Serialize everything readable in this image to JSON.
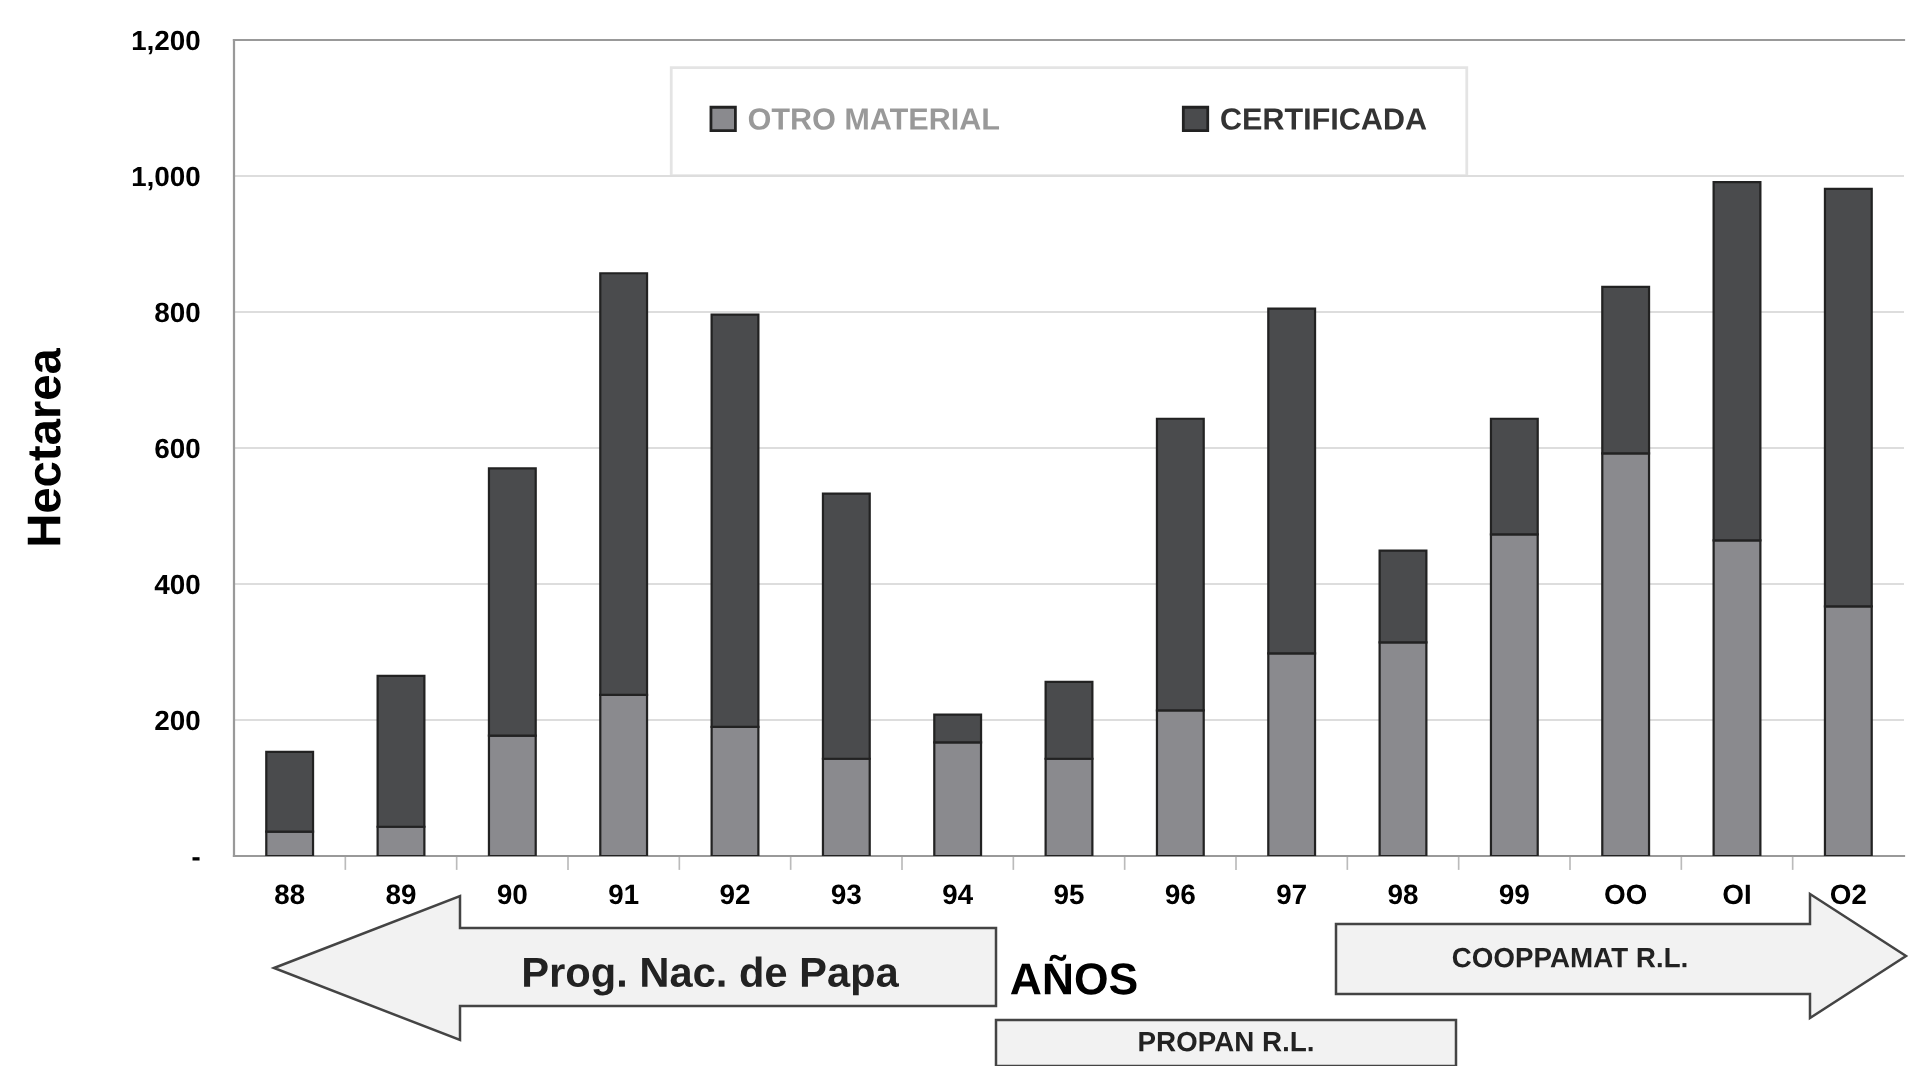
{
  "chart_data": {
    "type": "bar",
    "stacked": true,
    "xlabel": "AÑOS",
    "ylabel": "Hectarea",
    "categories": [
      "88",
      "89",
      "90",
      "91",
      "92",
      "93",
      "94",
      "95",
      "96",
      "97",
      "98",
      "99",
      "OO",
      "OI",
      "O2"
    ],
    "series": [
      {
        "name": "OTRO MATERIAL",
        "color": "#8a8a8e",
        "values": [
          36,
          43,
          177,
          237,
          190,
          143,
          167,
          143,
          214,
          298,
          314,
          473,
          592,
          464,
          367
        ]
      },
      {
        "name": "CERTIFICADA",
        "color": "#4a4b4d",
        "values": [
          117,
          222,
          393,
          620,
          606,
          390,
          41,
          113,
          429,
          507,
          135,
          170,
          245,
          527,
          614
        ]
      }
    ],
    "ylim": [
      0,
      1200
    ],
    "yticks": [
      {
        "value": 0,
        "label": "-"
      },
      {
        "value": 200,
        "label": "200"
      },
      {
        "value": 400,
        "label": "400"
      },
      {
        "value": 600,
        "label": "600"
      },
      {
        "value": 800,
        "label": "800"
      },
      {
        "value": 1000,
        "label": "1,000"
      },
      {
        "value": 1200,
        "label": "1,200"
      }
    ],
    "grid": "y",
    "legend": "top",
    "annotations": [
      "Prog. Nac. de Papa",
      "PROPAN R.L.",
      "COOPPAMAT R.L."
    ]
  }
}
